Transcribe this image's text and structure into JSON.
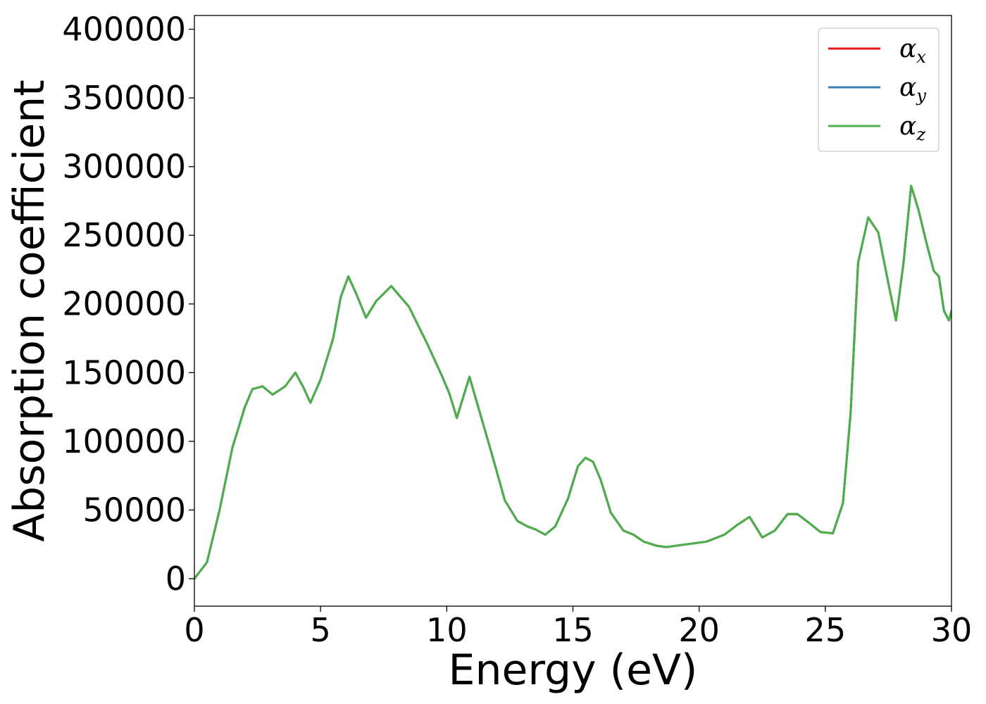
{
  "chart_data": {
    "type": "line",
    "title": "",
    "xlabel": "Energy (eV)",
    "ylabel": "Absorption coefficient",
    "xlim": [
      0,
      30
    ],
    "ylim": [
      -20000,
      410000
    ],
    "x_ticks": [
      0,
      5,
      10,
      15,
      20,
      25,
      30
    ],
    "y_ticks": [
      0,
      50000,
      100000,
      150000,
      200000,
      250000,
      300000,
      350000,
      400000
    ],
    "grid": false,
    "legend_position": "top-right",
    "x": [
      0,
      0.5,
      1,
      1.5,
      2,
      2.3,
      2.7,
      3.1,
      3.6,
      4,
      4.3,
      4.6,
      5,
      5.5,
      5.8,
      6.1,
      6.4,
      6.8,
      7.2,
      7.8,
      8.5,
      9.2,
      9.8,
      10.1,
      10.4,
      10.7,
      10.9,
      11.2,
      11.8,
      12.3,
      12.8,
      13.2,
      13.5,
      13.9,
      14.3,
      14.8,
      15.2,
      15.5,
      15.8,
      16.1,
      16.5,
      17,
      17.4,
      17.8,
      18.3,
      18.7,
      19.5,
      20.3,
      21,
      21.5,
      22,
      22.5,
      23,
      23.5,
      23.9,
      24.4,
      24.8,
      25.3,
      25.7,
      26,
      26.3,
      26.7,
      27.1,
      27.5,
      27.8,
      28.1,
      28.4,
      28.7,
      29,
      29.3,
      29.5,
      29.7,
      29.9,
      30
    ],
    "series": [
      {
        "name": "α_x",
        "color": "#e41a1c",
        "values": [
          0,
          12000,
          50000,
          95000,
          125000,
          138000,
          140000,
          134000,
          140000,
          150000,
          140000,
          128000,
          145000,
          175000,
          205000,
          220000,
          208000,
          190000,
          202000,
          213000,
          198000,
          172000,
          148000,
          135000,
          117000,
          135000,
          147000,
          128000,
          90000,
          57000,
          42000,
          38000,
          36000,
          32000,
          38000,
          58000,
          82000,
          88000,
          85000,
          72000,
          48000,
          35000,
          32000,
          27000,
          24000,
          23000,
          25000,
          27000,
          32000,
          39000,
          45000,
          30000,
          35000,
          47000,
          47000,
          40000,
          34000,
          33000,
          55000,
          120000,
          230000,
          263000,
          252000,
          215000,
          188000,
          230000,
          286000,
          268000,
          245000,
          224000,
          220000,
          195000,
          188000,
          195000
        ]
      },
      {
        "name": "α_y",
        "color": "#377eb8",
        "values": [
          0,
          12000,
          50000,
          95000,
          125000,
          138000,
          140000,
          134000,
          140000,
          150000,
          140000,
          128000,
          145000,
          175000,
          205000,
          220000,
          208000,
          190000,
          202000,
          213000,
          198000,
          172000,
          148000,
          135000,
          117000,
          135000,
          147000,
          128000,
          90000,
          57000,
          42000,
          38000,
          36000,
          32000,
          38000,
          58000,
          82000,
          88000,
          85000,
          72000,
          48000,
          35000,
          32000,
          27000,
          24000,
          23000,
          25000,
          27000,
          32000,
          39000,
          45000,
          30000,
          35000,
          47000,
          47000,
          40000,
          34000,
          33000,
          55000,
          120000,
          230000,
          263000,
          252000,
          215000,
          188000,
          230000,
          286000,
          268000,
          245000,
          224000,
          220000,
          195000,
          188000,
          195000
        ]
      },
      {
        "name": "α_z",
        "color": "#4daf4a",
        "values": [
          0,
          12000,
          50000,
          95000,
          125000,
          138000,
          140000,
          134000,
          140000,
          150000,
          140000,
          128000,
          145000,
          175000,
          205000,
          220000,
          208000,
          190000,
          202000,
          213000,
          198000,
          172000,
          148000,
          135000,
          117000,
          135000,
          147000,
          128000,
          90000,
          57000,
          42000,
          38000,
          36000,
          32000,
          38000,
          58000,
          82000,
          88000,
          85000,
          72000,
          48000,
          35000,
          32000,
          27000,
          24000,
          23000,
          25000,
          27000,
          32000,
          39000,
          45000,
          30000,
          35000,
          47000,
          47000,
          40000,
          34000,
          33000,
          55000,
          120000,
          230000,
          263000,
          252000,
          215000,
          188000,
          230000,
          286000,
          268000,
          245000,
          224000,
          220000,
          195000,
          188000,
          195000
        ]
      }
    ],
    "legend": [
      {
        "symbol": "α",
        "subscript": "x"
      },
      {
        "symbol": "α",
        "subscript": "y"
      },
      {
        "symbol": "α",
        "subscript": "z"
      }
    ]
  }
}
